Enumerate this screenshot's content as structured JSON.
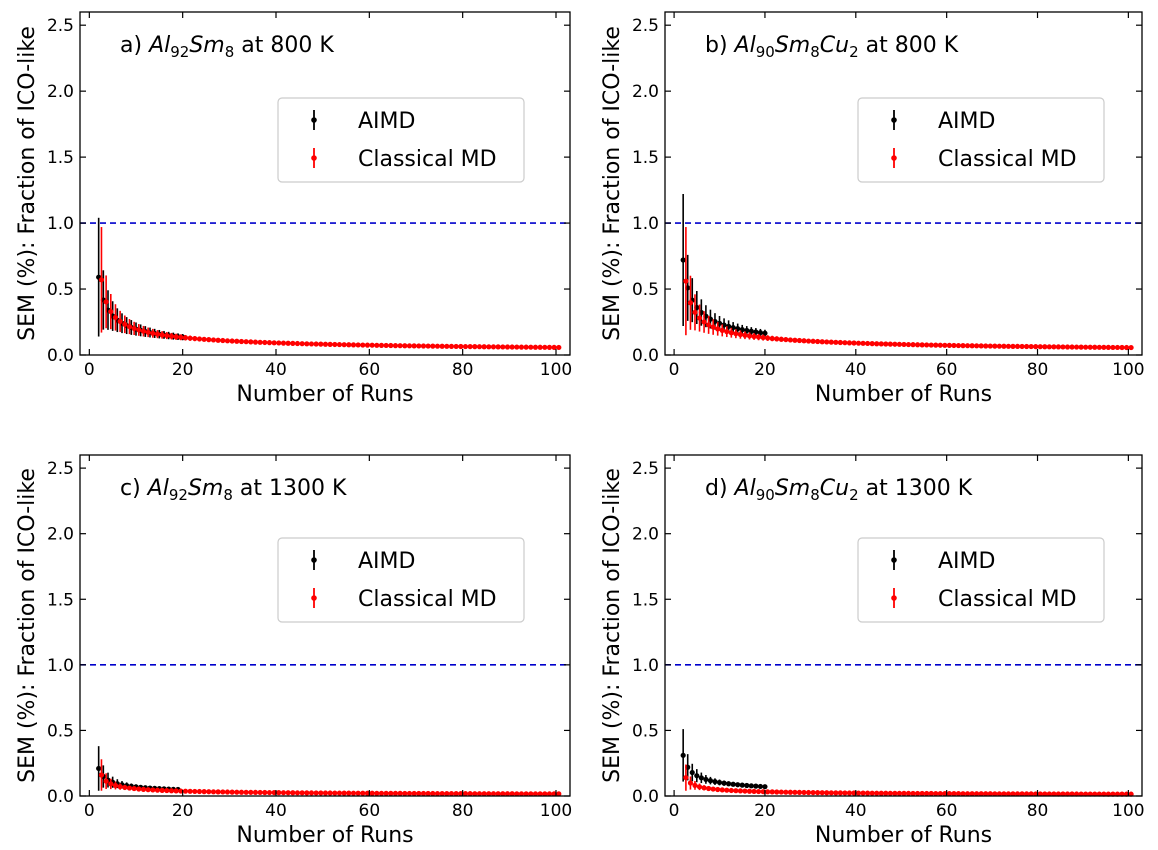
{
  "chart_data": [
    {
      "type": "scatter",
      "panel_label": "a)",
      "title_parts": [
        {
          "text": "Al",
          "italic": true
        },
        {
          "text": "92",
          "sub": true
        },
        {
          "text": "Sm",
          "italic": true
        },
        {
          "text": "8",
          "sub": true
        },
        {
          "text": " at 800 K"
        }
      ],
      "xlabel": "Number of Runs",
      "ylabel": "SEM (%): Fraction of ICO-like",
      "xlim": [
        -2,
        103
      ],
      "ylim": [
        0,
        2.6
      ],
      "xticks": [
        "0",
        "20",
        "40",
        "60",
        "80",
        "100"
      ],
      "yticks": [
        "0.0",
        "0.5",
        "1.0",
        "1.5",
        "2.0",
        "2.5"
      ],
      "reference_line": {
        "y": 1.0,
        "color": "#0000cc",
        "style": "dashed"
      },
      "legend": {
        "position": "center-right",
        "entries": [
          "AIMD",
          "Classical MD"
        ]
      },
      "series": [
        {
          "name": "AIMD",
          "color": "#000000",
          "x_range": [
            2,
            20
          ],
          "mean_at_2": 0.59,
          "mean_decay": "1/sqrt(n-1)",
          "err_at_2": 0.45,
          "err_decay": "1/(n-1)"
        },
        {
          "name": "Classical MD",
          "color": "#ff0000",
          "x_range": [
            2,
            100
          ],
          "mean_at_2": 0.57,
          "mean_decay": "1/sqrt(n-1)",
          "err_at_2": 0.4,
          "err_decay": "1/(n-1)"
        }
      ]
    },
    {
      "type": "scatter",
      "panel_label": "b)",
      "title_parts": [
        {
          "text": "Al",
          "italic": true
        },
        {
          "text": "90",
          "sub": true
        },
        {
          "text": "Sm",
          "italic": true
        },
        {
          "text": "8",
          "sub": true
        },
        {
          "text": "Cu",
          "italic": true
        },
        {
          "text": "2",
          "sub": true
        },
        {
          "text": " at 800 K"
        }
      ],
      "xlabel": "Number of Runs",
      "ylabel": "SEM (%): Fraction of ICO-like",
      "xlim": [
        -2,
        103
      ],
      "ylim": [
        0,
        2.6
      ],
      "xticks": [
        "0",
        "20",
        "40",
        "60",
        "80",
        "100"
      ],
      "yticks": [
        "0.0",
        "0.5",
        "1.0",
        "1.5",
        "2.0",
        "2.5"
      ],
      "reference_line": {
        "y": 1.0,
        "color": "#0000cc",
        "style": "dashed"
      },
      "legend": {
        "position": "center-right",
        "entries": [
          "AIMD",
          "Classical MD"
        ]
      },
      "series": [
        {
          "name": "AIMD",
          "color": "#000000",
          "x_range": [
            2,
            20
          ],
          "mean_at_2": 0.72,
          "mean_decay": "1/sqrt(n-1)",
          "err_at_2": 0.5,
          "err_decay": "1/(n-1)"
        },
        {
          "name": "Classical MD",
          "color": "#ff0000",
          "x_range": [
            2,
            100
          ],
          "mean_at_2": 0.56,
          "mean_decay": "1/sqrt(n-1)",
          "err_at_2": 0.41,
          "err_decay": "1/(n-1)"
        }
      ]
    },
    {
      "type": "scatter",
      "panel_label": "c)",
      "title_parts": [
        {
          "text": "Al",
          "italic": true
        },
        {
          "text": "92",
          "sub": true
        },
        {
          "text": "Sm",
          "italic": true
        },
        {
          "text": "8",
          "sub": true
        },
        {
          "text": " at 1300 K"
        }
      ],
      "xlabel": "Number of Runs",
      "ylabel": "SEM (%): Fraction of ICO-like",
      "xlim": [
        -2,
        103
      ],
      "ylim": [
        0,
        2.6
      ],
      "xticks": [
        "0",
        "20",
        "40",
        "60",
        "80",
        "100"
      ],
      "yticks": [
        "0.0",
        "0.5",
        "1.0",
        "1.5",
        "2.0",
        "2.5"
      ],
      "reference_line": {
        "y": 1.0,
        "color": "#0000cc",
        "style": "dashed"
      },
      "legend": {
        "position": "center-right",
        "entries": [
          "AIMD",
          "Classical MD"
        ]
      },
      "series": [
        {
          "name": "AIMD",
          "color": "#000000",
          "x_range": [
            2,
            19
          ],
          "mean_at_2": 0.21,
          "mean_decay": "1/sqrt(n-1)",
          "err_at_2": 0.17,
          "err_decay": "1/(n-1)"
        },
        {
          "name": "Classical MD",
          "color": "#ff0000",
          "x_range": [
            2,
            100
          ],
          "mean_at_2": 0.16,
          "mean_decay": "1/sqrt(n-1)",
          "err_at_2": 0.12,
          "err_decay": "1/(n-1)"
        }
      ]
    },
    {
      "type": "scatter",
      "panel_label": "d)",
      "title_parts": [
        {
          "text": "Al",
          "italic": true
        },
        {
          "text": "90",
          "sub": true
        },
        {
          "text": "Sm",
          "italic": true
        },
        {
          "text": "8",
          "sub": true
        },
        {
          "text": "Cu",
          "italic": true
        },
        {
          "text": "2",
          "sub": true
        },
        {
          "text": " at 1300 K"
        }
      ],
      "xlabel": "Number of Runs",
      "ylabel": "SEM (%): Fraction of ICO-like",
      "xlim": [
        -2,
        103
      ],
      "ylim": [
        0,
        2.6
      ],
      "xticks": [
        "0",
        "20",
        "40",
        "60",
        "80",
        "100"
      ],
      "yticks": [
        "0.0",
        "0.5",
        "1.0",
        "1.5",
        "2.0",
        "2.5"
      ],
      "reference_line": {
        "y": 1.0,
        "color": "#0000cc",
        "style": "dashed"
      },
      "legend": {
        "position": "center-right",
        "entries": [
          "AIMD",
          "Classical MD"
        ]
      },
      "series": [
        {
          "name": "AIMD",
          "color": "#000000",
          "x_range": [
            2,
            20
          ],
          "mean_at_2": 0.31,
          "mean_decay": "1/sqrt(n-1)",
          "err_at_2": 0.2,
          "err_decay": "1/(n-1)"
        },
        {
          "name": "Classical MD",
          "color": "#ff0000",
          "x_range": [
            2,
            100
          ],
          "mean_at_2": 0.14,
          "mean_decay": "1/sqrt(n-1)",
          "err_at_2": 0.1,
          "err_decay": "1/(n-1)"
        }
      ]
    }
  ]
}
